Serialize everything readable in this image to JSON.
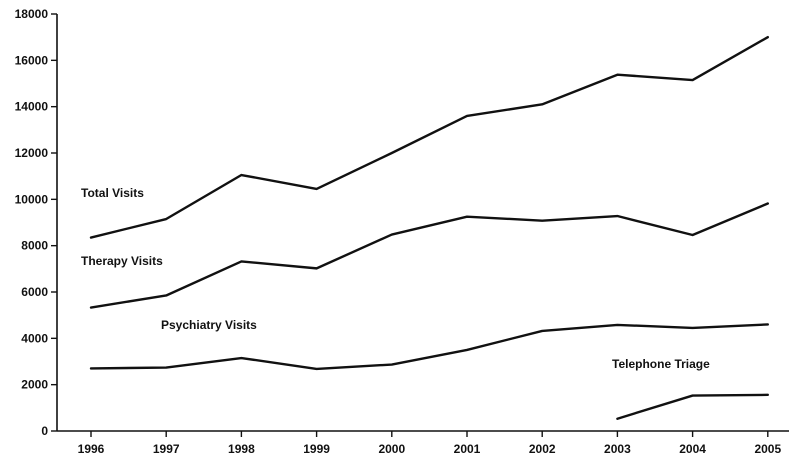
{
  "chart_data": {
    "type": "line",
    "title": "",
    "xlabel": "",
    "ylabel": "",
    "x": [
      "1996",
      "1997",
      "1998",
      "1999",
      "2000",
      "2001",
      "2002",
      "2003",
      "2004",
      "2005"
    ],
    "ylim": [
      0,
      18000
    ],
    "yticks": [
      0,
      2000,
      4000,
      6000,
      8000,
      10000,
      12000,
      14000,
      16000,
      18000
    ],
    "grid": false,
    "legend": "none (series labelled inline)",
    "series": [
      {
        "name": "Total Visits",
        "values": [
          8350,
          9150,
          11050,
          10450,
          12000,
          13600,
          14100,
          15380,
          15150,
          17000
        ]
      },
      {
        "name": "Therapy Visits",
        "values": [
          5330,
          5850,
          7320,
          7020,
          8480,
          9250,
          9080,
          9280,
          8460,
          9820
        ]
      },
      {
        "name": "Psychiatry Visits",
        "values": [
          2700,
          2740,
          3150,
          2680,
          2870,
          3500,
          4320,
          4580,
          4450,
          4600
        ]
      },
      {
        "name": "Telephone Triage",
        "values": [
          null,
          null,
          null,
          null,
          null,
          null,
          null,
          530,
          1530,
          1560
        ]
      }
    ]
  }
}
